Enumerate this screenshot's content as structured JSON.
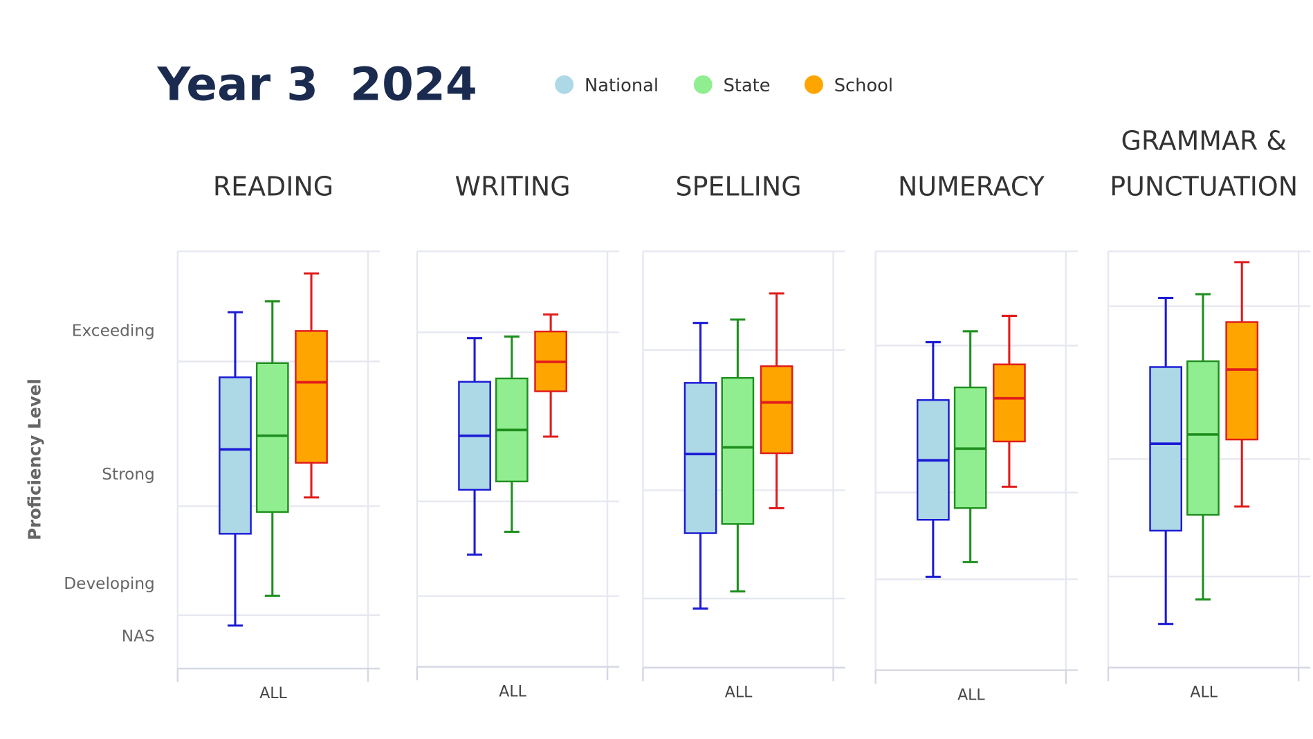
{
  "title": "Year 3  2024",
  "y_axis_label": "Proficiency Level",
  "series": [
    {
      "name": "National",
      "color": "#1a1ad6",
      "fill": "#add8e6"
    },
    {
      "name": "State",
      "color": "#1e8f1e",
      "fill": "#90ee90"
    },
    {
      "name": "School",
      "color": "#e01b1b",
      "fill": "#ffa500"
    }
  ],
  "chart_data": [
    {
      "type": "box",
      "title": "READING",
      "categories": [
        "ALL"
      ],
      "ylim": [
        0,
        100
      ],
      "yticks": [
        {
          "value": 81.1,
          "label": "Exceeding"
        },
        {
          "value": 46.7,
          "label": "Strong"
        },
        {
          "value": 20.5,
          "label": "Developing"
        },
        {
          "value": 7.9,
          "label": "NAS"
        }
      ],
      "grid": [
        73.6,
        38.9,
        12.8
      ],
      "boxes": [
        {
          "low": 10.3,
          "q1": 32.3,
          "median": 52.5,
          "q3": 69.8,
          "high": 85.4
        },
        {
          "low": 17.4,
          "q1": 37.5,
          "median": 55.8,
          "q3": 73.2,
          "high": 88.0
        },
        {
          "low": 41.0,
          "q1": 49.3,
          "median": 68.6,
          "q3": 80.9,
          "high": 94.7
        }
      ]
    },
    {
      "type": "box",
      "title": "WRITING",
      "categories": [
        "ALL"
      ],
      "ylim": [
        0,
        100
      ],
      "grid": [
        80.5,
        39.8,
        17.0
      ],
      "boxes": [
        {
          "low": 27.0,
          "q1": 42.6,
          "median": 55.6,
          "q3": 68.6,
          "high": 79.1
        },
        {
          "low": 32.5,
          "q1": 44.6,
          "median": 57.0,
          "q3": 69.4,
          "high": 79.5
        },
        {
          "low": 55.4,
          "q1": 66.3,
          "median": 73.4,
          "q3": 80.7,
          "high": 84.8
        }
      ]
    },
    {
      "type": "box",
      "title": "SPELLING",
      "categories": [
        "ALL"
      ],
      "ylim": [
        0,
        100
      ],
      "grid": [
        76.3,
        42.6,
        16.6
      ],
      "boxes": [
        {
          "low": 14.2,
          "q1": 32.3,
          "median": 51.3,
          "q3": 68.4,
          "high": 82.8
        },
        {
          "low": 18.3,
          "q1": 34.5,
          "median": 52.9,
          "q3": 69.6,
          "high": 83.6
        },
        {
          "low": 38.3,
          "q1": 51.5,
          "median": 63.7,
          "q3": 72.4,
          "high": 89.9
        }
      ]
    },
    {
      "type": "box",
      "title": "NUMERACY",
      "categories": [
        "ALL"
      ],
      "ylim": [
        0,
        100
      ],
      "grid": [
        77.5,
        42.4,
        21.7
      ],
      "boxes": [
        {
          "low": 22.3,
          "q1": 35.9,
          "median": 50.1,
          "q3": 64.5,
          "high": 78.3
        },
        {
          "low": 25.8,
          "q1": 38.7,
          "median": 52.9,
          "q3": 67.5,
          "high": 80.9
        },
        {
          "low": 43.8,
          "q1": 54.6,
          "median": 64.9,
          "q3": 73.0,
          "high": 84.6
        }
      ]
    },
    {
      "type": "box",
      "title": "GRAMMAR & PUNCTUATION",
      "categories": [
        "ALL"
      ],
      "ylim": [
        0,
        100
      ],
      "grid": [
        86.8,
        50.1,
        21.9
      ],
      "boxes": [
        {
          "low": 10.5,
          "q1": 32.9,
          "median": 53.8,
          "q3": 72.2,
          "high": 88.8
        },
        {
          "low": 16.4,
          "q1": 36.7,
          "median": 56.0,
          "q3": 73.6,
          "high": 89.7
        },
        {
          "low": 38.7,
          "q1": 54.8,
          "median": 71.6,
          "q3": 83.0,
          "high": 97.4
        }
      ]
    }
  ]
}
